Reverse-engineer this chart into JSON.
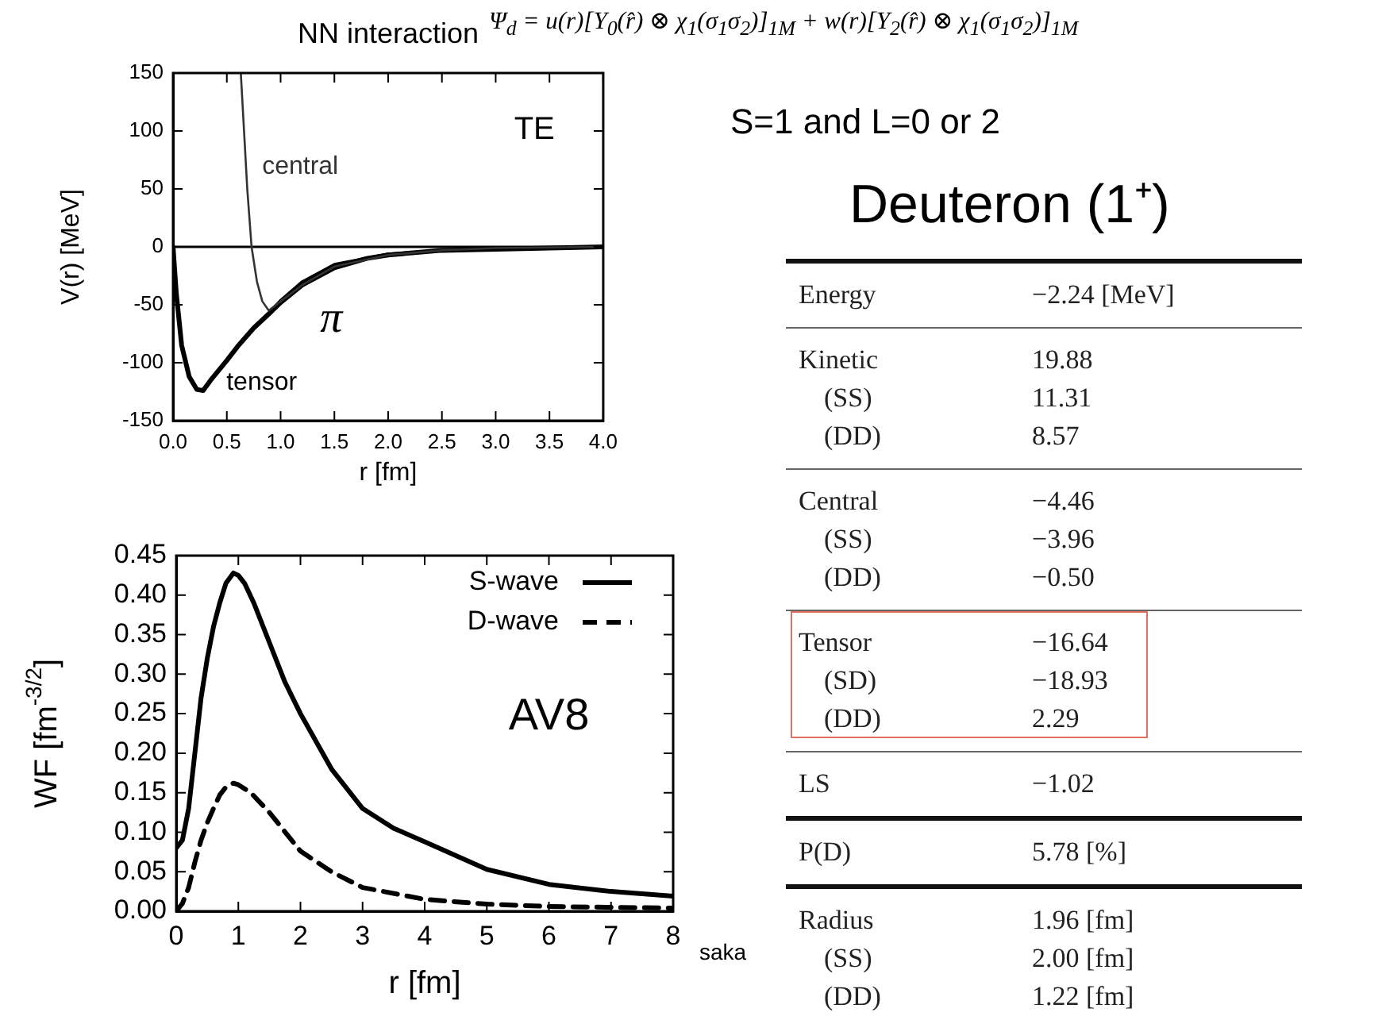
{
  "chart_data": [
    {
      "type": "line",
      "title": "NN interaction",
      "xlabel": "r [fm]",
      "ylabel": "V(r) [MeV]",
      "xlim": [
        0,
        4
      ],
      "xticks": [
        {
          "value": 0,
          "label": "0.0"
        },
        {
          "value": 0.5,
          "label": "0.5"
        },
        {
          "value": 1,
          "label": "1.0"
        },
        {
          "value": 1.5,
          "label": "1.5"
        },
        {
          "value": 2,
          "label": "2.0"
        },
        {
          "value": 2.5,
          "label": "2.5"
        },
        {
          "value": 3,
          "label": "3.0"
        },
        {
          "value": 3.5,
          "label": "3.5"
        },
        {
          "value": 4,
          "label": "4.0"
        }
      ],
      "ylim": [
        -150,
        150
      ],
      "yticks": [
        -150,
        -100,
        -50,
        0,
        50,
        100,
        150
      ],
      "grid": false,
      "marker": "none",
      "line_style": "solid",
      "ref_lines": [
        {
          "axis": "y",
          "value": 0,
          "color": "#000000"
        }
      ],
      "annotations": [
        "TE"
      ],
      "series": [
        {
          "name": "central",
          "color": "#333333",
          "x": [
            0.63,
            0.66,
            0.69,
            0.73,
            0.78,
            0.83,
            0.89,
            1.0,
            1.2,
            1.5,
            2.0,
            2.5,
            3.0,
            4.0
          ],
          "values": [
            150,
            100,
            50,
            0,
            -30,
            -47,
            -55,
            -47,
            -33,
            -17,
            -7,
            -3,
            -1,
            0
          ]
        },
        {
          "name": "tensor",
          "color": "#000000",
          "x": [
            0,
            0.03,
            0.08,
            0.15,
            0.22,
            0.28,
            0.35,
            0.5,
            0.6,
            0.75,
            0.9,
            1.0,
            1.2,
            1.5,
            1.8,
            2.0,
            2.5,
            3.0,
            3.5,
            4.0
          ],
          "values": [
            0,
            -40,
            -85,
            -112,
            -123,
            -124,
            -115,
            -98,
            -86,
            -70,
            -57,
            -48,
            -33,
            -18,
            -10,
            -7,
            -3,
            -2,
            -1,
            0
          ]
        },
        {
          "name": "π",
          "color": "#000000",
          "x": [
            0.9,
            1.0,
            1.2,
            1.5,
            2.0,
            2.5,
            3.0,
            4.0
          ],
          "values": [
            -56,
            -46,
            -30,
            -15,
            -6,
            -3,
            -1,
            0
          ]
        }
      ]
    },
    {
      "type": "line",
      "xlabel": "r [fm]",
      "ylabel": "WF [fm$^{-3/2}$]",
      "xlim": [
        0,
        8
      ],
      "xticks": [
        0,
        1,
        2,
        3,
        4,
        5,
        6,
        7,
        8
      ],
      "ylim": [
        0,
        0.45
      ],
      "yticks": [
        {
          "value": 0,
          "label": "0.00"
        },
        {
          "value": 0.05,
          "label": "0.05"
        },
        {
          "value": 0.1,
          "label": "0.10"
        },
        {
          "value": 0.15,
          "label": "0.15"
        },
        {
          "value": 0.2,
          "label": "0.20"
        },
        {
          "value": 0.25,
          "label": "0.25"
        },
        {
          "value": 0.3,
          "label": "0.30"
        },
        {
          "value": 0.35,
          "label": "0.35"
        },
        {
          "value": 0.4,
          "label": "0.40"
        },
        {
          "value": 0.45,
          "label": "0.45"
        }
      ],
      "grid": false,
      "marker": "none",
      "legend": "top right",
      "annotations": [
        "AV8",
        "saka"
      ],
      "series": [
        {
          "name": "S-wave",
          "color": "#000000",
          "line_style": "solid",
          "x": [
            0,
            0.1,
            0.2,
            0.3,
            0.4,
            0.5,
            0.6,
            0.7,
            0.8,
            0.92,
            1.0,
            1.1,
            1.25,
            1.5,
            1.75,
            2.0,
            2.5,
            3.0,
            3.5,
            4.0,
            5.0,
            6.0,
            7.0,
            8.0
          ],
          "values": [
            0.08,
            0.09,
            0.13,
            0.2,
            0.27,
            0.32,
            0.36,
            0.39,
            0.415,
            0.428,
            0.425,
            0.415,
            0.39,
            0.34,
            0.29,
            0.25,
            0.18,
            0.13,
            0.105,
            0.088,
            0.053,
            0.034,
            0.025,
            0.019
          ]
        },
        {
          "name": "D-wave",
          "color": "#000000",
          "line_style": "dashed",
          "x": [
            0,
            0.1,
            0.2,
            0.3,
            0.4,
            0.5,
            0.6,
            0.7,
            0.8,
            0.92,
            1.0,
            1.2,
            1.5,
            2.0,
            2.5,
            3.0,
            4.0,
            5.0,
            6.0,
            7.0,
            8.0
          ],
          "values": [
            0,
            0.01,
            0.03,
            0.062,
            0.09,
            0.112,
            0.13,
            0.147,
            0.157,
            0.162,
            0.16,
            0.15,
            0.125,
            0.076,
            0.05,
            0.03,
            0.015,
            0.009,
            0.006,
            0.005,
            0.004
          ]
        }
      ]
    },
    {
      "type": "other",
      "title": "Deuteron (1⁺)",
      "subtitle": "S=1 and L=0 or 2",
      "annotations": [
        "Ψ$_{d}$ = u(r)[Y$_{0}$(r̂) ⊗ χ$_{1}$(σ$_{1}$σ$_{2}$)]$_{1M}$ + w(r)[Y$_{2}$(r̂) ⊗ χ$_{1}$(σ$_{1}$σ$_{2}$)]$_{1M}$",
        "Energy",
        "−2.24 [MeV]",
        "Kinetic",
        "19.88",
        "(SS)",
        "11.31",
        "(DD)",
        "8.57",
        "Central",
        "−4.46",
        "(SS)",
        "−3.96",
        "(DD)",
        "−0.50",
        "Tensor",
        "−16.64",
        "(SD)",
        "−18.93",
        "(DD)",
        "2.29",
        "LS",
        "−1.02",
        "P(D)",
        "5.78 [%]",
        "Radius",
        "1.96 [fm]",
        "(SS)",
        "2.00 [fm]",
        "(DD)",
        "1.22 [fm]"
      ]
    }
  ]
}
